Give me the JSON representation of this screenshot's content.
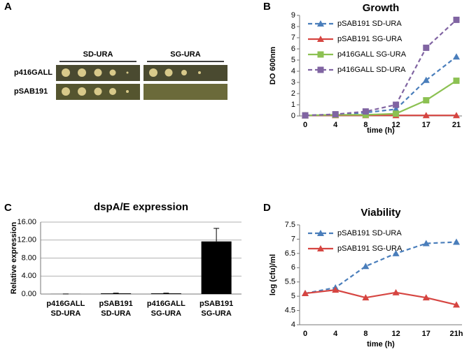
{
  "panels": [
    "A",
    "B",
    "C",
    "D"
  ],
  "plate_figure": {
    "columns": [
      "SD-URA",
      "SG-URA"
    ],
    "rows": [
      "p416GALL",
      "pSAB191"
    ]
  },
  "chart_data": [
    {
      "type": "line",
      "title": "Growth",
      "x_label": "time (h)",
      "y_label": "DO 600nm",
      "categories": [
        "0",
        "4",
        "8",
        "12",
        "17",
        "21"
      ],
      "ylim": [
        0,
        9
      ],
      "yticks": [
        0,
        1,
        2,
        3,
        4,
        5,
        6,
        7,
        8,
        9
      ],
      "grid": false,
      "legend": "upper left",
      "series": [
        {
          "name": "pSAB191 SD-URA",
          "color": "#4a7ebb",
          "line_style": "dashed",
          "marker": "triangle",
          "values": [
            0.05,
            0.1,
            0.3,
            0.6,
            3.2,
            5.3
          ]
        },
        {
          "name": "pSAB191 SG-URA",
          "color": "#d64541",
          "line_style": "solid",
          "marker": "triangle",
          "values": [
            0.05,
            0.05,
            0.05,
            0.05,
            0.05,
            0.05
          ]
        },
        {
          "name": "p416GALL SG-URA",
          "color": "#8cc152",
          "line_style": "solid",
          "marker": "square",
          "values": [
            0.05,
            0.1,
            0.1,
            0.2,
            1.4,
            3.15
          ]
        },
        {
          "name": "p416GALL SD-URA",
          "color": "#8064a2",
          "line_style": "dashed",
          "marker": "square",
          "values": [
            0.05,
            0.15,
            0.4,
            1.0,
            6.1,
            8.6
          ]
        }
      ]
    },
    {
      "type": "bar",
      "title": "dspA/E expression",
      "y_label": "Relative expression",
      "categories": [
        [
          "p416GALL",
          "SD-URA"
        ],
        [
          "pSAB191",
          "SD-URA"
        ],
        [
          "p416GALL",
          "SG-URA"
        ],
        [
          "pSAB191",
          "SG-URA"
        ]
      ],
      "values": [
        0.02,
        0.15,
        0.15,
        11.7
      ],
      "errors": [
        0,
        0.05,
        0.05,
        2.9
      ],
      "color": "#000000",
      "ylim": [
        0,
        16
      ],
      "yticks": [
        {
          "value": 0,
          "label": "0.00"
        },
        {
          "value": 4,
          "label": "4.00"
        },
        {
          "value": 8,
          "label": "8.00"
        },
        {
          "value": 12,
          "label": "12.00"
        },
        {
          "value": 16,
          "label": "16.00"
        }
      ],
      "grid": true
    },
    {
      "type": "line",
      "title": "Viability",
      "x_label": "time (h)",
      "y_label": "log (cfu)/ml",
      "categories": [
        "0",
        "4",
        "8",
        "12",
        "17",
        "21h"
      ],
      "ylim": [
        4,
        7.5
      ],
      "yticks": [
        4,
        4.5,
        5,
        5.5,
        6,
        6.5,
        7,
        7.5
      ],
      "grid": false,
      "legend": "upper left",
      "series": [
        {
          "name": "pSAB191 SD-URA",
          "color": "#4a7ebb",
          "line_style": "dashed",
          "marker": "triangle",
          "values": [
            5.1,
            5.3,
            6.05,
            6.5,
            6.85,
            6.9
          ]
        },
        {
          "name": "pSAB191 SG-URA",
          "color": "#d64541",
          "line_style": "solid",
          "marker": "triangle",
          "values": [
            5.1,
            5.22,
            4.95,
            5.13,
            4.95,
            4.7
          ]
        }
      ]
    }
  ]
}
